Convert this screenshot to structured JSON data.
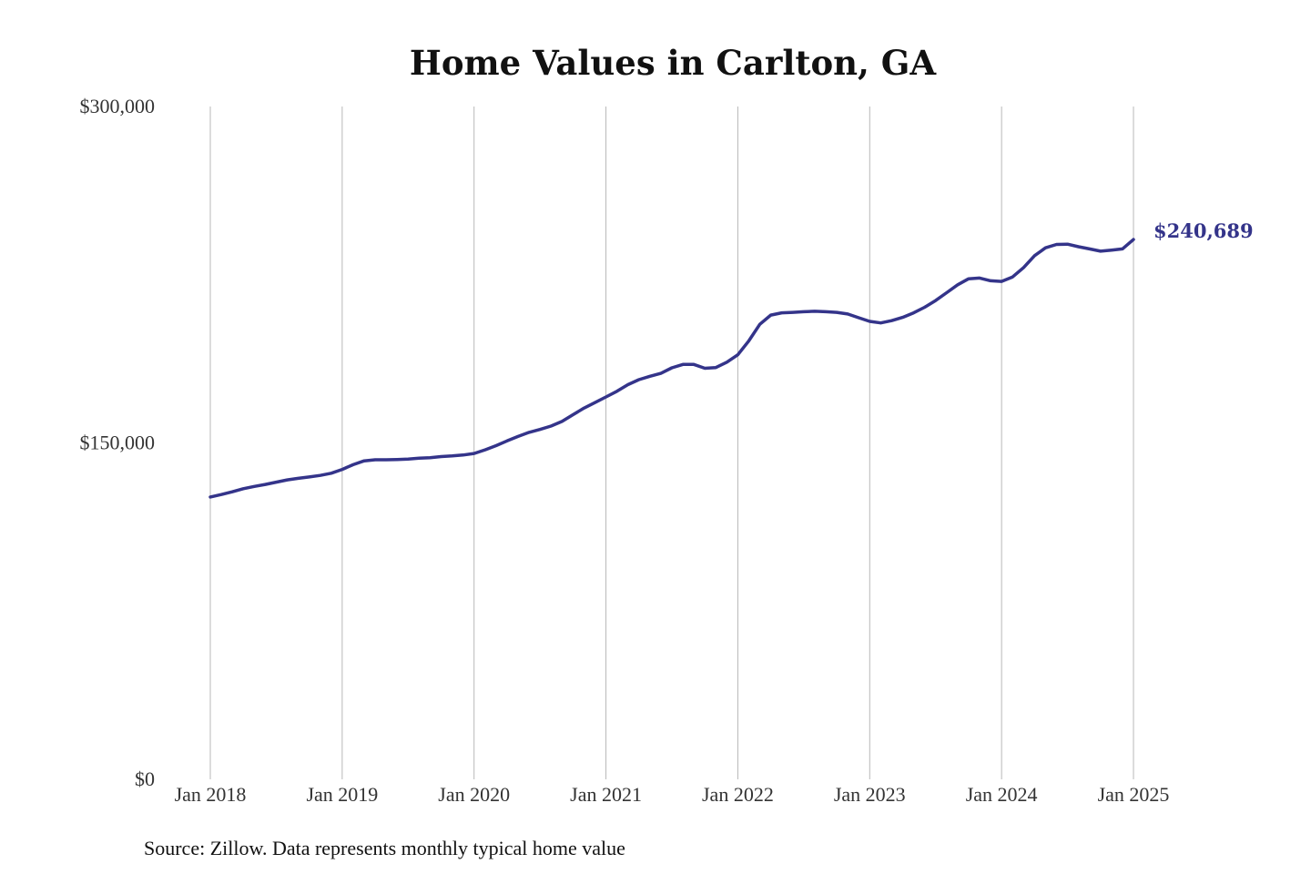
{
  "chart_data": {
    "type": "line",
    "title": "Home Values in Carlton, GA",
    "xlabel": "",
    "ylabel": "",
    "ylim": [
      0,
      300000
    ],
    "y_ticks": [
      {
        "value": 0,
        "label": "$0"
      },
      {
        "value": 150000,
        "label": "$150,000"
      },
      {
        "value": 300000,
        "label": "$300,000"
      }
    ],
    "x_ticks": [
      {
        "value": "2018-01",
        "label": "Jan 2018"
      },
      {
        "value": "2019-01",
        "label": "Jan 2019"
      },
      {
        "value": "2020-01",
        "label": "Jan 2020"
      },
      {
        "value": "2021-01",
        "label": "Jan 2021"
      },
      {
        "value": "2022-01",
        "label": "Jan 2022"
      },
      {
        "value": "2023-01",
        "label": "Jan 2023"
      },
      {
        "value": "2024-01",
        "label": "Jan 2024"
      },
      {
        "value": "2025-01",
        "label": "Jan 2025"
      }
    ],
    "xlim": [
      "2018-01",
      "2025-01"
    ],
    "grid": {
      "vertical": true,
      "horizontal": false
    },
    "end_label": "$240,689",
    "series": [
      {
        "color": "#34348a",
        "x": [
          "2018-01",
          "2018-02",
          "2018-03",
          "2018-04",
          "2018-05",
          "2018-06",
          "2018-07",
          "2018-08",
          "2018-09",
          "2018-10",
          "2018-11",
          "2018-12",
          "2019-01",
          "2019-02",
          "2019-03",
          "2019-04",
          "2019-05",
          "2019-06",
          "2019-07",
          "2019-08",
          "2019-09",
          "2019-10",
          "2019-11",
          "2019-12",
          "2020-01",
          "2020-02",
          "2020-03",
          "2020-04",
          "2020-05",
          "2020-06",
          "2020-07",
          "2020-08",
          "2020-09",
          "2020-10",
          "2020-11",
          "2020-12",
          "2021-01",
          "2021-02",
          "2021-03",
          "2021-04",
          "2021-05",
          "2021-06",
          "2021-07",
          "2021-08",
          "2021-09",
          "2021-10",
          "2021-11",
          "2021-12",
          "2022-01",
          "2022-02",
          "2022-03",
          "2022-04",
          "2022-05",
          "2022-06",
          "2022-07",
          "2022-08",
          "2022-09",
          "2022-10",
          "2022-11",
          "2022-12",
          "2023-01",
          "2023-02",
          "2023-03",
          "2023-04",
          "2023-05",
          "2023-06",
          "2023-07",
          "2023-08",
          "2023-09",
          "2023-10",
          "2023-11",
          "2023-12",
          "2024-01",
          "2024-02",
          "2024-03",
          "2024-04",
          "2024-05",
          "2024-06",
          "2024-07",
          "2024-08",
          "2024-09",
          "2024-10",
          "2024-11",
          "2024-12",
          "2025-01"
        ],
        "values": [
          125900,
          127000,
          128200,
          129600,
          130600,
          131500,
          132500,
          133500,
          134200,
          134800,
          135500,
          136500,
          138200,
          140300,
          142000,
          142500,
          142500,
          142600,
          142800,
          143200,
          143400,
          143900,
          144200,
          144600,
          145300,
          146900,
          148800,
          150900,
          152900,
          154700,
          156000,
          157500,
          159600,
          162600,
          165500,
          168000,
          170500,
          173000,
          176000,
          178200,
          179700,
          181000,
          183500,
          185000,
          185000,
          183300,
          183600,
          186000,
          189300,
          195500,
          202900,
          207000,
          208000,
          208200,
          208500,
          208700,
          208500,
          208200,
          207500,
          205800,
          204200,
          203500,
          204500,
          206000,
          208000,
          210500,
          213500,
          217000,
          220500,
          223200,
          223500,
          222300,
          222000,
          224000,
          228200,
          233500,
          237000,
          238500,
          238600,
          237500,
          236500,
          235500,
          236000,
          236500,
          240689
        ]
      }
    ]
  },
  "footer": {
    "source": "Source: Zillow. Data represents monthly typical home value"
  }
}
